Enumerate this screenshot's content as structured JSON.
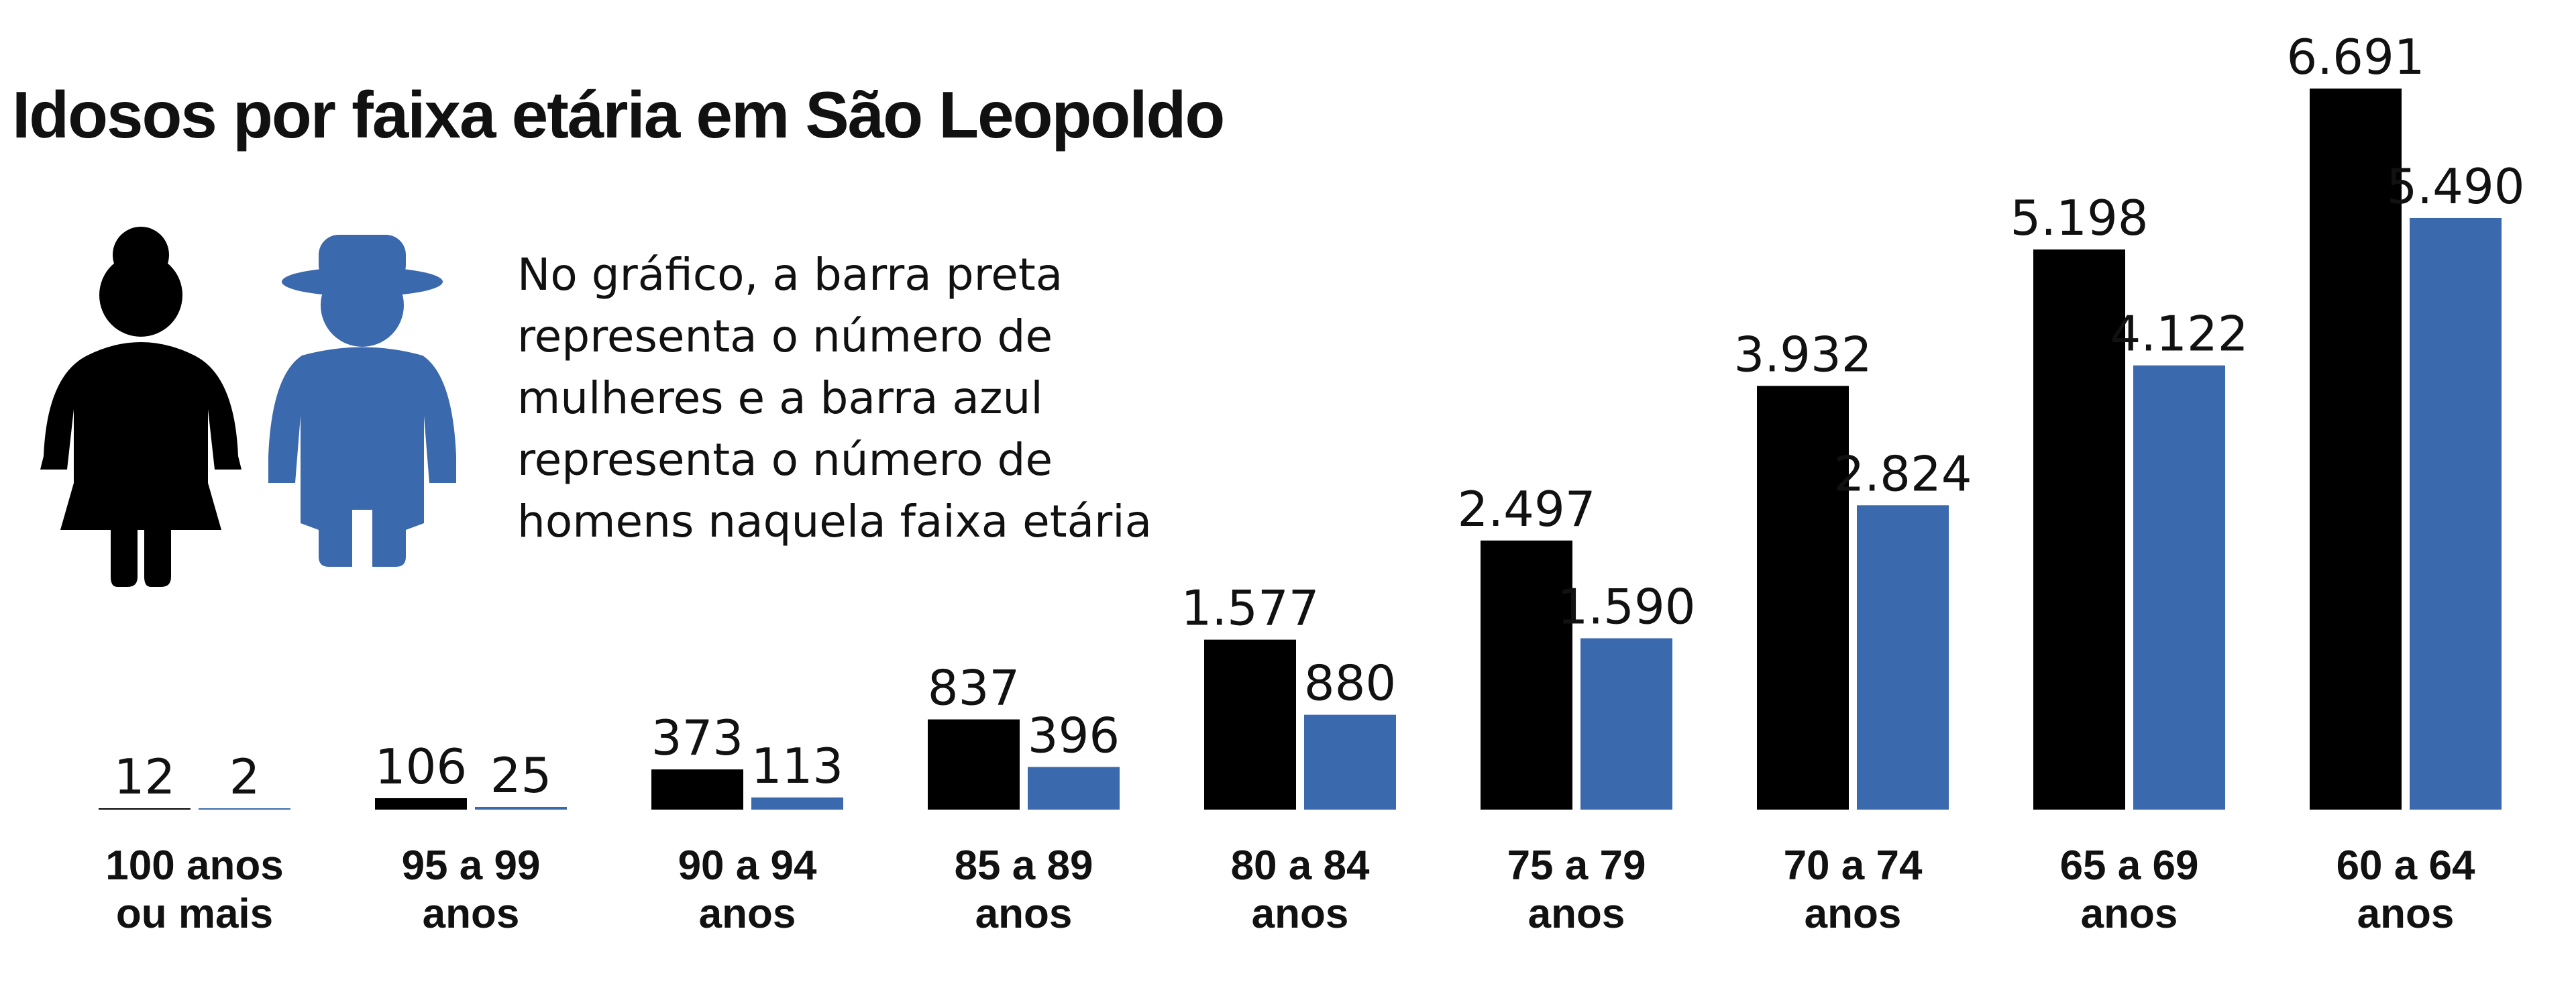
{
  "chart_data": {
    "type": "bar",
    "title": "Idosos por faixa etária em São Leopoldo",
    "note": [
      "No gráfico, a barra preta",
      "representa o número de",
      "mulheres e a barra azul",
      "representa o número de",
      "homens naquela faixa etária"
    ],
    "categories": [
      "100 anos ou mais",
      "95 a 99 anos",
      "90 a 94 anos",
      "85 a 89 anos",
      "80 a 84 anos",
      "75 a 79 anos",
      "70 a 74 anos",
      "65 a 69 anos",
      "60 a 64 anos"
    ],
    "series": [
      {
        "color": "#000000",
        "values": [
          12,
          106,
          373,
          837,
          1577,
          2497,
          3932,
          5198,
          6691
        ],
        "value_labels": [
          "12",
          "106",
          "373",
          "837",
          "1.577",
          "2.497",
          "3.932",
          "5.198",
          "6.691"
        ]
      },
      {
        "color": "#3b69ad",
        "values": [
          2,
          25,
          113,
          396,
          880,
          1590,
          2824,
          4122,
          5490
        ],
        "value_labels": [
          "2",
          "25",
          "113",
          "396",
          "880",
          "1.590",
          "2.824",
          "4.122",
          "5.490"
        ]
      }
    ]
  }
}
